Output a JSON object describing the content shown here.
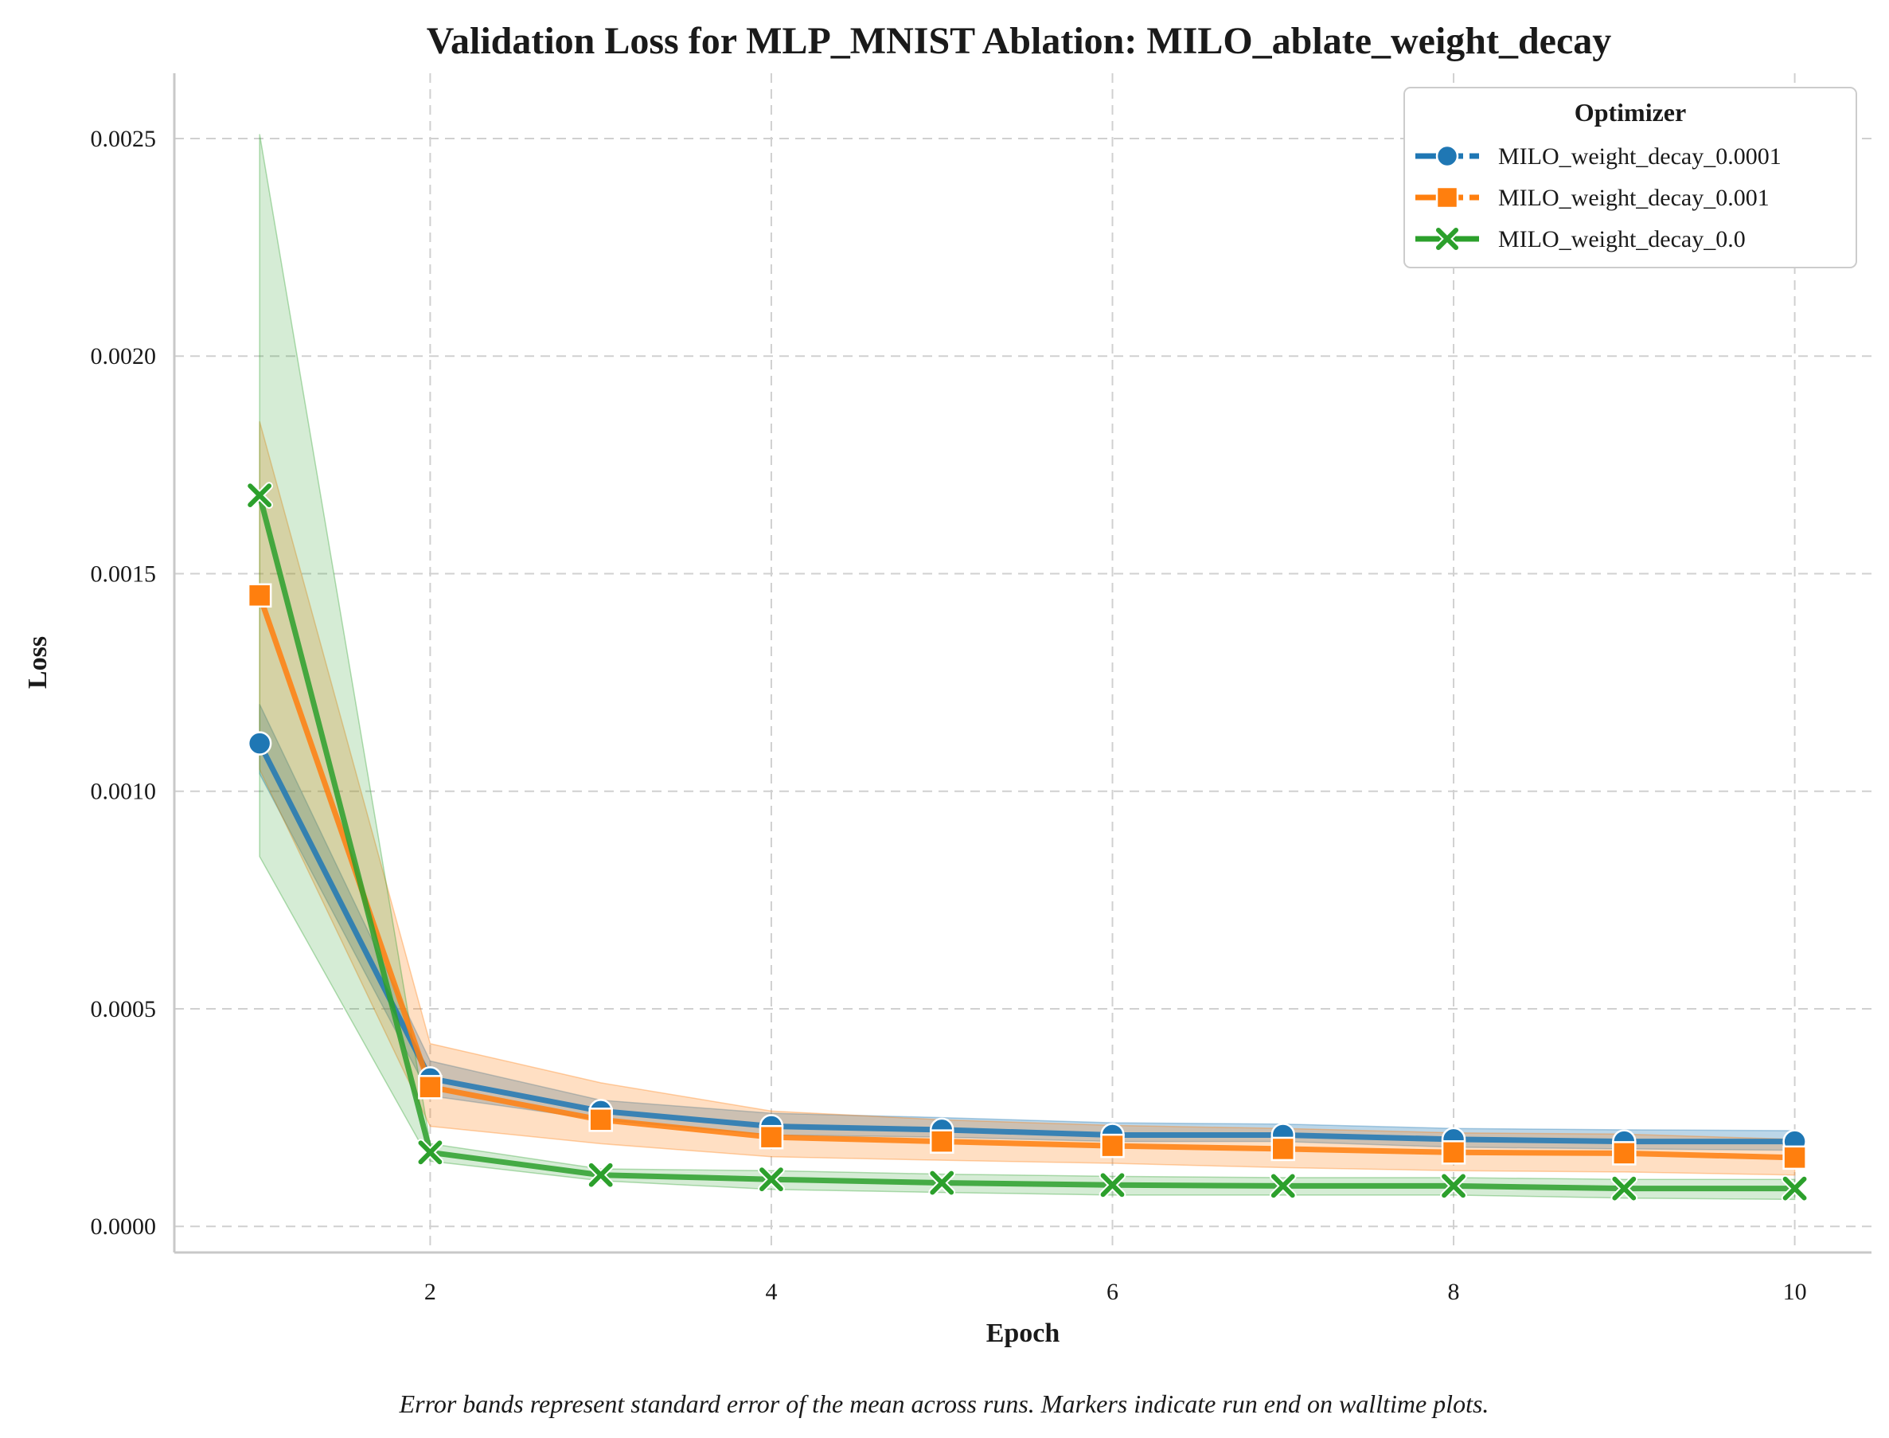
{
  "chart_data": {
    "type": "line",
    "title": "Validation Loss for MLP_MNIST Ablation: MILO_ablate_weight_decay",
    "xlabel": "Epoch",
    "ylabel": "Loss",
    "xlim": [
      0.5,
      10.45
    ],
    "ylim": [
      -6e-05,
      0.00265
    ],
    "xticks": [
      2,
      4,
      6,
      8,
      10
    ],
    "xtick_labels": [
      "2",
      "4",
      "6",
      "8",
      "10"
    ],
    "yticks": [
      0,
      0.0005,
      0.001,
      0.0015,
      0.002,
      0.0025
    ],
    "ytick_labels": [
      "0.0000",
      "0.0005",
      "0.0010",
      "0.0015",
      "0.0020",
      "0.0025"
    ],
    "grid": true,
    "x": [
      1,
      2,
      3,
      4,
      5,
      6,
      7,
      8,
      9,
      10
    ],
    "legend": {
      "title": "Optimizer",
      "position": "top-right"
    },
    "series": [
      {
        "name": "MILO_weight_decay_0.0001",
        "color": "#1f77b4",
        "marker": "circle",
        "values": [
          0.00111,
          0.00034,
          0.000265,
          0.00023,
          0.000222,
          0.00021,
          0.00021,
          0.0002,
          0.000195,
          0.000195
        ],
        "lower": [
          0.00104,
          0.0003,
          0.000245,
          0.00021,
          0.000205,
          0.000195,
          0.000195,
          0.000182,
          0.000178,
          0.000175
        ],
        "upper": [
          0.0012,
          0.00038,
          0.00029,
          0.00026,
          0.00025,
          0.000238,
          0.000235,
          0.000225,
          0.000222,
          0.00022
        ]
      },
      {
        "name": "MILO_weight_decay_0.001",
        "color": "#ff7f0e",
        "marker": "square",
        "values": [
          0.00145,
          0.00032,
          0.000245,
          0.000205,
          0.000195,
          0.000185,
          0.000178,
          0.00017,
          0.000168,
          0.000158
        ],
        "lower": [
          0.00105,
          0.00023,
          0.00019,
          0.00016,
          0.000152,
          0.000145,
          0.000135,
          0.000128,
          0.000125,
          0.000118
        ],
        "upper": [
          0.00185,
          0.00042,
          0.00033,
          0.000265,
          0.000245,
          0.000232,
          0.000225,
          0.000215,
          0.000212,
          0.0002
        ]
      },
      {
        "name": "MILO_weight_decay_0.0",
        "color": "#2ca02c",
        "marker": "x",
        "values": [
          0.00168,
          0.00017,
          0.000118,
          0.000108,
          0.0001,
          9.5e-05,
          9.3e-05,
          9.3e-05,
          8.7e-05,
          8.7e-05
        ],
        "lower": [
          0.00085,
          0.00015,
          0.000105,
          8.5e-05,
          7.8e-05,
          7.2e-05,
          7.2e-05,
          7.2e-05,
          6.5e-05,
          6.2e-05
        ],
        "upper": [
          0.00251,
          0.00019,
          0.000132,
          0.000128,
          0.00012,
          0.000115,
          0.000112,
          0.000112,
          0.000108,
          0.000108
        ]
      }
    ],
    "caption": "Error bands represent standard error of the mean across runs. Markers indicate run end on walltime plots."
  }
}
